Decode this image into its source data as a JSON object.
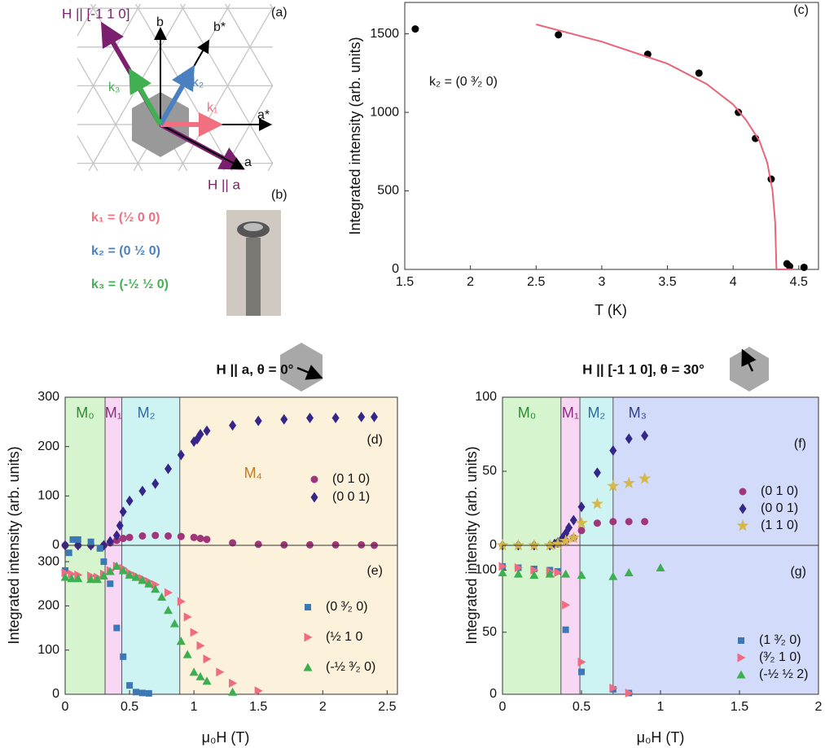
{
  "diagram": {
    "panel_a": "(a)",
    "panel_b": "(b)",
    "vector_labels": [
      "H || [-1 1 0]",
      "b",
      "b*",
      "k₃",
      "k₂",
      "k₁",
      "a*",
      "a",
      "H || a"
    ],
    "wavevectors": [
      "k₁ = (½ 0 0)",
      "k₂ = (0 ½ 0)",
      "k₃ = (-½ ½ 0)"
    ]
  },
  "chart_data": [
    {
      "type": "scatter",
      "label": "(c)",
      "annotation": "k₂ = (0 ³⁄₂ 0)",
      "xlabel": "T (K)",
      "ylabel": "Integrated intensity (arb. units)",
      "xlim": [
        1.5,
        4.65
      ],
      "xticks": [
        1.5,
        2,
        2.5,
        3,
        3.5,
        4,
        4.5
      ],
      "ylim": [
        0,
        1700
      ],
      "yticks": [
        0,
        500,
        1000,
        1500
      ],
      "series": [
        {
          "marker": "circle",
          "color": "#000000",
          "x": [
            1.58,
            2.67,
            3.35,
            3.74,
            4.04,
            4.17,
            4.29,
            4.41,
            4.43,
            4.54
          ],
          "values": [
            1531,
            1494,
            1370,
            1250,
            1000,
            834,
            575,
            36,
            20,
            13
          ]
        },
        {
          "marker": "line",
          "color": "#e8647a",
          "x": [
            2.5,
            3,
            3.5,
            3.8,
            4,
            4.1,
            4.2,
            4.26,
            4.3,
            4.32,
            4.33,
            4.45
          ],
          "values": [
            1560,
            1450,
            1310,
            1180,
            1050,
            950,
            820,
            680,
            500,
            300,
            0,
            0
          ]
        }
      ]
    },
    {
      "type": "scatter",
      "title": "H || a, θ = 0°",
      "label": "(d)",
      "ylabel": "Integrated intensity (arb. units)",
      "xlim": [
        0,
        2.58
      ],
      "ylim": [
        0,
        300
      ],
      "yticks": [
        0,
        100,
        200,
        300
      ],
      "regions": [
        {
          "label": "M₀",
          "from": 0,
          "to": 0.31,
          "color": "#d6f5cf",
          "text_color": "#2f8a2f"
        },
        {
          "label": "M₁",
          "from": 0.31,
          "to": 0.44,
          "color": "#f8d7f4",
          "text_color": "#8a2c7f"
        },
        {
          "label": "M₂",
          "from": 0.44,
          "to": 0.89,
          "color": "#cdf3f3",
          "text_color": "#2f6aa0"
        },
        {
          "label": "M₄",
          "from": 0.89,
          "to": 2.58,
          "color": "#fcf1da",
          "text_color": "#c07a1f"
        }
      ],
      "series": [
        {
          "name": "(0 1 0)",
          "marker": "circle",
          "color": "#a0357a",
          "x": [
            0,
            0.1,
            0.2,
            0.3,
            0.35,
            0.4,
            0.45,
            0.5,
            0.6,
            0.7,
            0.8,
            0.9,
            1.0,
            1.05,
            1.1,
            1.3,
            1.5,
            1.7,
            1.9,
            2.1,
            2.3,
            2.4
          ],
          "values": [
            0,
            0,
            0,
            0,
            5,
            10,
            14,
            16,
            19,
            20,
            19,
            18,
            16,
            14,
            12,
            5,
            2,
            1,
            1,
            1,
            1,
            0
          ]
        },
        {
          "name": "(0 0 1)",
          "marker": "diamond",
          "color": "#35278a",
          "x": [
            0,
            0.1,
            0.2,
            0.3,
            0.35,
            0.4,
            0.425,
            0.45,
            0.5,
            0.6,
            0.7,
            0.8,
            0.9,
            1.0,
            1.025,
            1.05,
            1.1,
            1.3,
            1.5,
            1.7,
            1.9,
            2.1,
            2.3,
            2.4
          ],
          "values": [
            0,
            0,
            0,
            0,
            8,
            20,
            40,
            68,
            90,
            110,
            125,
            155,
            183,
            210,
            215,
            225,
            232,
            243,
            252,
            255,
            258,
            258,
            260,
            260
          ]
        }
      ]
    },
    {
      "type": "scatter",
      "label": "(e)",
      "xlabel": "μ₀H (T)",
      "xlim": [
        0,
        2.58
      ],
      "xticks": [
        0,
        0.5,
        1,
        1.5,
        2,
        2.5
      ],
      "ylim": [
        0,
        337
      ],
      "yticks": [
        0,
        100,
        200,
        300
      ],
      "series": [
        {
          "name": "(0 ³⁄₂ 0)",
          "marker": "square",
          "color": "#3c78b4",
          "x": [
            0,
            0.03,
            0.06,
            0.1,
            0.2,
            0.27,
            0.3,
            0.35,
            0.4,
            0.45,
            0.5,
            0.55,
            0.6,
            0.65
          ],
          "values": [
            280,
            320,
            350,
            350,
            345,
            330,
            300,
            250,
            150,
            85,
            20,
            5,
            3,
            2
          ]
        },
        {
          "name": "(½ 1 0",
          "marker": "triangle-right",
          "color": "#f06a80",
          "x": [
            0,
            0.05,
            0.1,
            0.2,
            0.25,
            0.3,
            0.35,
            0.4,
            0.45,
            0.5,
            0.55,
            0.6,
            0.65,
            0.7,
            0.8,
            0.9,
            0.95,
            1.0,
            1.05,
            1.1,
            1.2,
            1.3,
            1.5
          ],
          "values": [
            275,
            272,
            270,
            268,
            265,
            272,
            280,
            290,
            285,
            275,
            268,
            262,
            255,
            248,
            230,
            210,
            175,
            140,
            110,
            80,
            50,
            25,
            8
          ]
        },
        {
          "name": "(-½ ³⁄₂ 0)",
          "marker": "triangle-up",
          "color": "#3cb050",
          "x": [
            0,
            0.05,
            0.1,
            0.2,
            0.25,
            0.3,
            0.35,
            0.4,
            0.45,
            0.5,
            0.55,
            0.6,
            0.65,
            0.7,
            0.75,
            0.8,
            0.85,
            0.9,
            0.95,
            1.0,
            1.05,
            1.1,
            1.3
          ],
          "values": [
            265,
            262,
            262,
            260,
            260,
            268,
            278,
            290,
            280,
            270,
            265,
            258,
            250,
            238,
            220,
            190,
            160,
            120,
            90,
            50,
            40,
            30,
            5
          ]
        }
      ]
    },
    {
      "type": "scatter",
      "title": "H || [-1 1 0], θ = 30°",
      "label": "(f)",
      "ylabel": "Integrated intensity (arb. units)",
      "xlim": [
        0,
        2
      ],
      "ylim": [
        0,
        100
      ],
      "yticks": [
        0,
        50,
        100
      ],
      "regions": [
        {
          "label": "M₀",
          "from": 0,
          "to": 0.37,
          "color": "#d6f5cf",
          "text_color": "#2f8a2f"
        },
        {
          "label": "M₁",
          "from": 0.37,
          "to": 0.49,
          "color": "#f8d7f4",
          "text_color": "#8a2c7f"
        },
        {
          "label": "M₂",
          "from": 0.49,
          "to": 0.7,
          "color": "#cdf3f3",
          "text_color": "#2f6aa0"
        },
        {
          "label": "M₃",
          "from": 0.7,
          "to": 2,
          "color": "#d3dbfb",
          "text_color": "#2f3f8a"
        }
      ],
      "series": [
        {
          "name": "(0 1 0)",
          "marker": "circle",
          "color": "#a0357a",
          "x": [
            0.35,
            0.4,
            0.45,
            0.5,
            0.6,
            0.7,
            0.8,
            0.9
          ],
          "values": [
            1,
            3,
            5,
            10,
            15,
            16,
            16,
            16
          ]
        },
        {
          "name": "(0 0 1)",
          "marker": "diamond",
          "color": "#35278a",
          "x": [
            0,
            0.1,
            0.2,
            0.3,
            0.33,
            0.35,
            0.38,
            0.4,
            0.42,
            0.45,
            0.5,
            0.6,
            0.7,
            0.8,
            0.9
          ],
          "values": [
            0,
            0,
            0,
            0,
            1,
            2,
            5,
            8,
            12,
            17,
            26,
            49,
            64,
            72,
            74
          ]
        },
        {
          "name": "(1 1 0)",
          "marker": "star",
          "color": "#d4b84a",
          "x": [
            0,
            0.1,
            0.2,
            0.3,
            0.35,
            0.4,
            0.45,
            0.5,
            0.6,
            0.7,
            0.8,
            0.9
          ],
          "values": [
            0,
            0,
            0,
            0,
            1,
            3,
            5,
            15,
            28,
            40,
            42,
            45
          ]
        }
      ]
    },
    {
      "type": "scatter",
      "label": "(g)",
      "xlabel": "μ₀H (T)",
      "xlim": [
        0,
        2
      ],
      "xticks": [
        0,
        0.5,
        1,
        1.5,
        2
      ],
      "ylim": [
        0,
        120
      ],
      "yticks": [
        0,
        50,
        100
      ],
      "series": [
        {
          "name": "(1 ³⁄₂ 0)",
          "marker": "square",
          "color": "#3c78b4",
          "x": [
            0,
            0.1,
            0.2,
            0.3,
            0.35,
            0.4,
            0.5,
            0.7,
            0.8
          ],
          "values": [
            103,
            102,
            101,
            100,
            99,
            52,
            18,
            4,
            1
          ]
        },
        {
          "name": "(³⁄₂ 1 0)",
          "marker": "triangle-right",
          "color": "#f06a80",
          "x": [
            0,
            0.1,
            0.2,
            0.3,
            0.35,
            0.4,
            0.5,
            0.7,
            0.8
          ],
          "values": [
            103,
            102,
            100,
            99,
            98,
            72,
            26,
            5,
            1
          ]
        },
        {
          "name": "(-½ ½ 2)",
          "marker": "triangle-up",
          "color": "#3cb050",
          "x": [
            0,
            0.1,
            0.2,
            0.3,
            0.4,
            0.5,
            0.7,
            0.8,
            1.0
          ],
          "values": [
            98,
            97,
            96,
            97,
            97,
            96,
            95,
            98,
            102
          ]
        }
      ]
    }
  ]
}
